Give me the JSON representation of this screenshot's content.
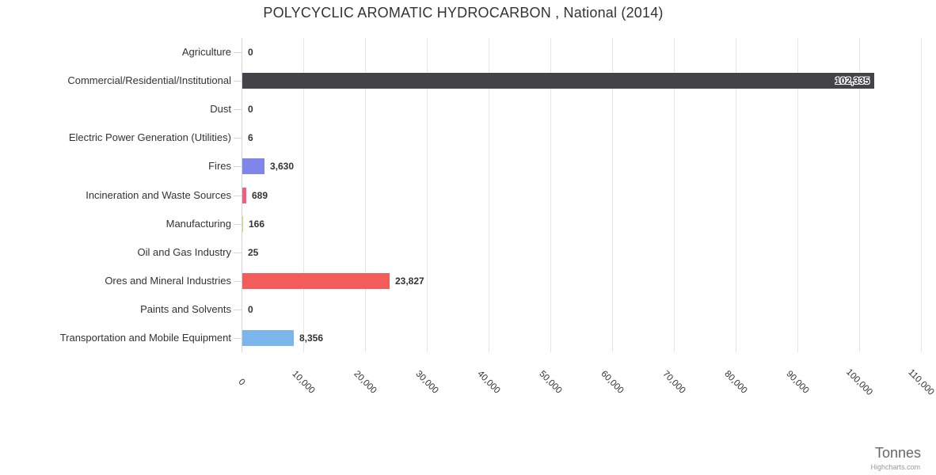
{
  "credits": "Highcharts.com",
  "chart_data": {
    "type": "bar",
    "orientation": "horizontal",
    "title": "POLYCYCLIC AROMATIC HYDROCARBON , National (2014)",
    "categories": [
      "Agriculture",
      "Commercial/Residential/Institutional",
      "Dust",
      "Electric Power Generation (Utilities)",
      "Fires",
      "Incineration and Waste Sources",
      "Manufacturing",
      "Oil and Gas Industry",
      "Ores and Mineral Industries",
      "Paints and Solvents",
      "Transportation and Mobile Equipment"
    ],
    "values": [
      0,
      102335,
      0,
      6,
      3630,
      689,
      166,
      25,
      23827,
      0,
      8356
    ],
    "value_labels": [
      "0",
      "102,335",
      "0",
      "6",
      "3,630",
      "689",
      "166",
      "25",
      "23,827",
      "0",
      "8,356"
    ],
    "bar_colors": [
      "#7cb5ec",
      "#434348",
      "#90ed7d",
      "#f7a35c",
      "#8085e9",
      "#f15c80",
      "#e4d354",
      "#2b908f",
      "#f45b5b",
      "#91e8e1",
      "#7cb5ec"
    ],
    "xlabel": "Tonnes",
    "ylabel": "",
    "x_tick_labels": [
      "0",
      "10,000",
      "20,000",
      "30,000",
      "40,000",
      "50,000",
      "60,000",
      "70,000",
      "80,000",
      "90,000",
      "100,000",
      "110,000"
    ],
    "x_tick_values": [
      0,
      10000,
      20000,
      30000,
      40000,
      50000,
      60000,
      70000,
      80000,
      90000,
      100000,
      110000
    ],
    "xlim": [
      0,
      110000
    ],
    "tick_label_rotation_deg": 45,
    "grid": "vertical",
    "legend": "none"
  },
  "colors": {
    "background": "#ffffff",
    "title": "#333333",
    "category_label": "#333333",
    "tick_label": "#333333",
    "value_label": "#333333",
    "grid": "#e6e6e6",
    "axis_line": "#ccd6eb",
    "axis_title": "#666666",
    "credits": "#999999"
  }
}
